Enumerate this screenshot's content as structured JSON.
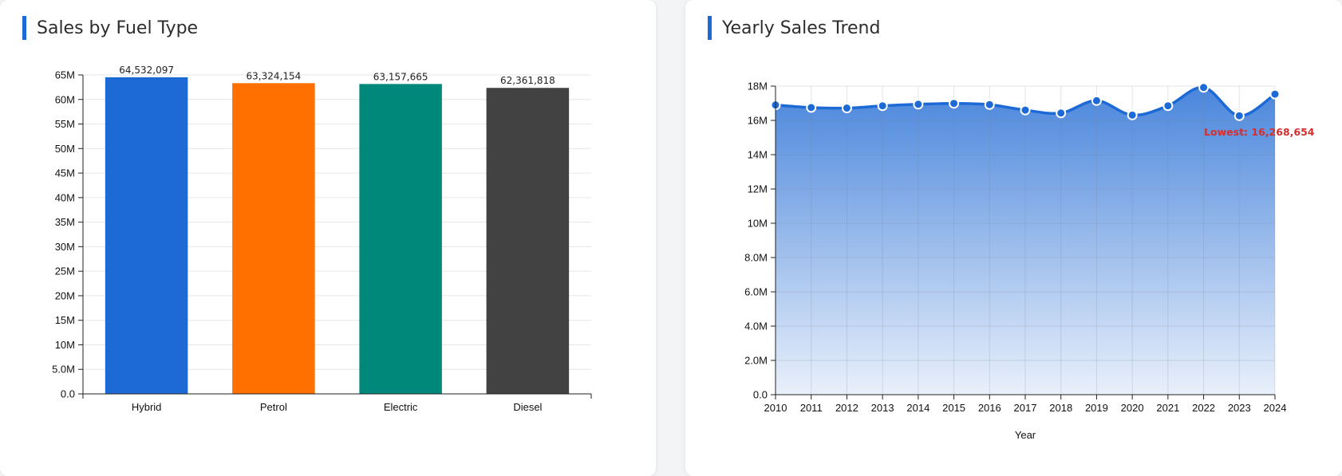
{
  "bar_panel": {
    "title": "Sales by Fuel Type"
  },
  "line_panel": {
    "title": "Yearly Sales Trend",
    "annotation": "Lowest: 16,268,654"
  },
  "colors": {
    "accent": "#1d6ad6",
    "hybrid": "#1d6ad6",
    "petrol": "#ff7000",
    "electric": "#00897b",
    "diesel": "#424242",
    "lowest_label": "#d32f2f"
  },
  "chart_data": [
    {
      "type": "bar",
      "title": "Sales by Fuel Type",
      "categories": [
        "Hybrid",
        "Petrol",
        "Electric",
        "Diesel"
      ],
      "values": [
        64532097,
        63324154,
        63157665,
        62361818
      ],
      "value_labels": [
        "64,532,097",
        "63,324,154",
        "63,157,665",
        "62,361,818"
      ],
      "ylim": [
        0,
        65000000
      ],
      "yticks": [
        0,
        5000000,
        10000000,
        15000000,
        20000000,
        25000000,
        30000000,
        35000000,
        40000000,
        45000000,
        50000000,
        55000000,
        60000000,
        65000000
      ],
      "ytick_labels": [
        "0.0",
        "5.0M",
        "10M",
        "15M",
        "20M",
        "25M",
        "30M",
        "35M",
        "40M",
        "45M",
        "50M",
        "55M",
        "60M",
        "65M"
      ],
      "grid": true
    },
    {
      "type": "area",
      "title": "Yearly Sales Trend",
      "xlabel": "Year",
      "x": [
        "2010",
        "2011",
        "2012",
        "2013",
        "2014",
        "2015",
        "2016",
        "2017",
        "2018",
        "2019",
        "2020",
        "2021",
        "2022",
        "2023",
        "2024"
      ],
      "values": [
        16900000,
        16750000,
        16720000,
        16850000,
        16940000,
        16990000,
        16920000,
        16600000,
        16430000,
        17150000,
        16310000,
        16850000,
        17920000,
        16268654,
        17530000
      ],
      "ylim": [
        0,
        18000000
      ],
      "yticks": [
        0,
        2000000,
        4000000,
        6000000,
        8000000,
        10000000,
        12000000,
        14000000,
        16000000,
        18000000
      ],
      "ytick_labels": [
        "0.0",
        "2.0M",
        "4.0M",
        "6.0M",
        "8.0M",
        "10M",
        "12M",
        "14M",
        "16M",
        "18M"
      ],
      "grid": true
    }
  ]
}
